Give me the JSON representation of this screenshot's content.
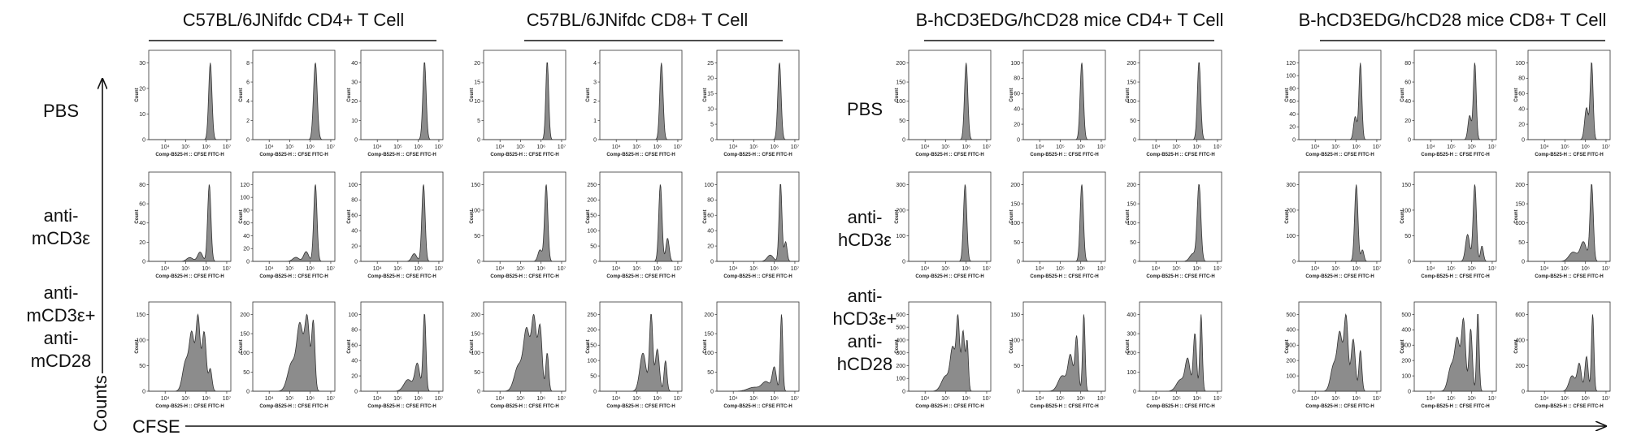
{
  "chart_data": {
    "type": "area",
    "description_type": "histogram-grid",
    "groups": [
      {
        "title": "C57BL/6JNifdc CD4+ T Cell"
      },
      {
        "title": "C57BL/6JNifdc CD8+ T Cell"
      },
      {
        "title": "B-hCD3EDG/hCD28 mice CD4+ T Cell"
      },
      {
        "title": "B-hCD3EDG/hCD28 mice CD8+ T Cell"
      }
    ],
    "row_labels_left": [
      "PBS",
      "anti-mCD3ε",
      "anti-mCD3ε+ anti-mCD28"
    ],
    "row_labels_right": [
      "PBS",
      "anti-hCD3ε",
      "anti-hCD3ε+ anti-hCD28"
    ],
    "y_axis_title": "Counts",
    "x_axis_title": "CFSE",
    "panel_xlabel": "Comp-B525-H :: CFSE FITC-H",
    "panel_ylabel": "Count",
    "x_tick_labels": [
      "10⁴",
      "10⁵",
      "10⁶",
      "10⁷"
    ],
    "x_scale": "log",
    "panels": [
      {
        "group": 0,
        "row": 0,
        "yticks": [
          0,
          10,
          20,
          30
        ],
        "peaks": [
          [
            6.2,
            1.0,
            0.08
          ]
        ]
      },
      {
        "group": 0,
        "row": 0,
        "yticks": [
          0,
          2.0,
          4.0,
          6.0,
          8.0
        ],
        "peaks": [
          [
            6.25,
            1.0,
            0.09
          ]
        ]
      },
      {
        "group": 0,
        "row": 0,
        "yticks": [
          0,
          10,
          20,
          30,
          40
        ],
        "peaks": [
          [
            6.3,
            1.0,
            0.08
          ]
        ]
      },
      {
        "group": 1,
        "row": 0,
        "yticks": [
          0,
          5,
          10,
          15,
          20
        ],
        "peaks": [
          [
            6.3,
            0.8,
            0.07
          ]
        ]
      },
      {
        "group": 1,
        "row": 0,
        "yticks": [
          0,
          1.0,
          2.0,
          3.0,
          4.0
        ],
        "peaks": [
          [
            6.2,
            0.6,
            0.08
          ]
        ]
      },
      {
        "group": 1,
        "row": 0,
        "yticks": [
          0,
          5,
          10,
          15,
          20,
          25
        ],
        "peaks": [
          [
            6.25,
            0.8,
            0.08
          ]
        ]
      },
      {
        "group": 2,
        "row": 0,
        "yticks": [
          0,
          50,
          100,
          150,
          200
        ],
        "peaks": [
          [
            6.0,
            1.0,
            0.08
          ]
        ]
      },
      {
        "group": 2,
        "row": 0,
        "yticks": [
          0,
          20,
          40,
          60,
          80,
          100
        ],
        "peaks": [
          [
            6.05,
            0.6,
            0.08
          ]
        ]
      },
      {
        "group": 2,
        "row": 0,
        "yticks": [
          0,
          50,
          100,
          150,
          200
        ],
        "peaks": [
          [
            6.1,
            0.85,
            0.08
          ]
        ]
      },
      {
        "group": 3,
        "row": 0,
        "yticks": [
          0,
          20,
          40,
          60,
          80,
          100,
          120
        ],
        "peaks": [
          [
            6.2,
            1.0,
            0.07
          ],
          [
            5.95,
            0.3,
            0.08
          ]
        ]
      },
      {
        "group": 3,
        "row": 0,
        "yticks": [
          0,
          20,
          40,
          60,
          80
        ],
        "peaks": [
          [
            6.15,
            0.8,
            0.07
          ],
          [
            5.9,
            0.25,
            0.08
          ]
        ]
      },
      {
        "group": 3,
        "row": 0,
        "yticks": [
          0,
          20,
          40,
          60,
          80,
          100
        ],
        "peaks": [
          [
            6.3,
            0.85,
            0.07
          ],
          [
            6.05,
            0.35,
            0.09
          ]
        ]
      },
      {
        "group": 0,
        "row": 1,
        "yticks": [
          0,
          20,
          40,
          60,
          80
        ],
        "peaks": [
          [
            6.15,
            1.0,
            0.08
          ],
          [
            5.7,
            0.12,
            0.12
          ],
          [
            5.2,
            0.05,
            0.15
          ]
        ]
      },
      {
        "group": 0,
        "row": 1,
        "yticks": [
          0,
          20,
          40,
          60,
          80,
          100,
          120
        ],
        "peaks": [
          [
            6.25,
            0.95,
            0.08
          ],
          [
            5.8,
            0.12,
            0.12
          ],
          [
            5.3,
            0.05,
            0.15
          ]
        ]
      },
      {
        "group": 0,
        "row": 1,
        "yticks": [
          0,
          20,
          40,
          60,
          80,
          100
        ],
        "peaks": [
          [
            6.25,
            1.0,
            0.08
          ],
          [
            5.8,
            0.1,
            0.12
          ]
        ]
      },
      {
        "group": 1,
        "row": 1,
        "yticks": [
          0,
          50,
          100,
          150
        ],
        "peaks": [
          [
            6.25,
            1.0,
            0.08
          ],
          [
            5.95,
            0.15,
            0.1
          ]
        ]
      },
      {
        "group": 1,
        "row": 1,
        "yticks": [
          0,
          50,
          100,
          150,
          200,
          250
        ],
        "peaks": [
          [
            6.15,
            1.0,
            0.08
          ],
          [
            6.5,
            0.3,
            0.08
          ]
        ]
      },
      {
        "group": 1,
        "row": 1,
        "yticks": [
          0,
          20,
          40,
          60,
          80,
          100
        ],
        "peaks": [
          [
            6.3,
            1.0,
            0.07
          ],
          [
            6.55,
            0.25,
            0.07
          ],
          [
            5.8,
            0.08,
            0.15
          ]
        ]
      },
      {
        "group": 2,
        "row": 1,
        "yticks": [
          0,
          100,
          200,
          300
        ],
        "peaks": [
          [
            5.95,
            1.0,
            0.08
          ]
        ]
      },
      {
        "group": 2,
        "row": 1,
        "yticks": [
          0,
          50,
          100,
          150,
          200
        ],
        "peaks": [
          [
            6.05,
            1.0,
            0.08
          ]
        ]
      },
      {
        "group": 2,
        "row": 1,
        "yticks": [
          0,
          50,
          100,
          150,
          200
        ],
        "peaks": [
          [
            6.1,
            1.0,
            0.09
          ],
          [
            5.8,
            0.1,
            0.15
          ]
        ]
      },
      {
        "group": 3,
        "row": 1,
        "yticks": [
          0,
          100,
          200,
          300
        ],
        "peaks": [
          [
            6.0,
            1.0,
            0.08
          ],
          [
            6.3,
            0.15,
            0.07
          ]
        ]
      },
      {
        "group": 3,
        "row": 1,
        "yticks": [
          0,
          50,
          100,
          150
        ],
        "peaks": [
          [
            6.15,
            1.0,
            0.08
          ],
          [
            5.8,
            0.35,
            0.1
          ],
          [
            6.5,
            0.2,
            0.07
          ]
        ]
      },
      {
        "group": 3,
        "row": 1,
        "yticks": [
          0,
          50,
          100,
          150,
          200
        ],
        "peaks": [
          [
            6.3,
            1.0,
            0.08
          ],
          [
            5.9,
            0.25,
            0.15
          ],
          [
            5.4,
            0.12,
            0.2
          ]
        ]
      },
      {
        "group": 0,
        "row": 2,
        "yticks": [
          0,
          50,
          100,
          150
        ],
        "peaks": [
          [
            5.6,
            1.0,
            0.1
          ],
          [
            5.3,
            0.75,
            0.12
          ],
          [
            5.9,
            0.8,
            0.1
          ],
          [
            5.0,
            0.4,
            0.15
          ],
          [
            6.2,
            0.3,
            0.08
          ]
        ]
      },
      {
        "group": 0,
        "row": 2,
        "yticks": [
          0,
          50,
          100,
          150,
          200
        ],
        "peaks": [
          [
            5.5,
            0.8,
            0.15
          ],
          [
            5.85,
            0.9,
            0.12
          ],
          [
            6.15,
            0.85,
            0.08
          ],
          [
            5.1,
            0.35,
            0.2
          ]
        ]
      },
      {
        "group": 0,
        "row": 2,
        "yticks": [
          0,
          20,
          40,
          60,
          80,
          100
        ],
        "peaks": [
          [
            6.3,
            1.0,
            0.07
          ],
          [
            5.95,
            0.35,
            0.12
          ],
          [
            5.5,
            0.15,
            0.2
          ]
        ]
      },
      {
        "group": 1,
        "row": 2,
        "yticks": [
          0,
          50,
          100,
          150,
          200
        ],
        "peaks": [
          [
            5.3,
            0.7,
            0.15
          ],
          [
            5.65,
            0.85,
            0.12
          ],
          [
            5.95,
            0.75,
            0.1
          ],
          [
            6.3,
            0.45,
            0.07
          ],
          [
            4.9,
            0.3,
            0.2
          ]
        ]
      },
      {
        "group": 1,
        "row": 2,
        "yticks": [
          0,
          50,
          100,
          150,
          200,
          250
        ],
        "peaks": [
          [
            5.7,
            1.0,
            0.08
          ],
          [
            5.3,
            0.5,
            0.15
          ],
          [
            6.0,
            0.55,
            0.1
          ],
          [
            6.4,
            0.4,
            0.07
          ]
        ]
      },
      {
        "group": 1,
        "row": 2,
        "yticks": [
          0,
          50,
          100,
          150,
          200
        ],
        "peaks": [
          [
            6.35,
            1.0,
            0.06
          ],
          [
            6.0,
            0.3,
            0.1
          ],
          [
            5.6,
            0.12,
            0.2
          ],
          [
            5.0,
            0.05,
            0.3
          ]
        ]
      },
      {
        "group": 2,
        "row": 2,
        "yticks": [
          0,
          100,
          200,
          300,
          400,
          500,
          600
        ],
        "peaks": [
          [
            5.6,
            0.95,
            0.08
          ],
          [
            5.85,
            0.8,
            0.08
          ],
          [
            5.35,
            0.55,
            0.12
          ],
          [
            6.05,
            0.65,
            0.06
          ],
          [
            5.0,
            0.2,
            0.2
          ]
        ]
      },
      {
        "group": 2,
        "row": 2,
        "yticks": [
          0,
          50,
          100,
          150
        ],
        "peaks": [
          [
            6.15,
            1.0,
            0.06
          ],
          [
            5.8,
            0.7,
            0.08
          ],
          [
            5.5,
            0.45,
            0.12
          ],
          [
            5.1,
            0.2,
            0.2
          ]
        ]
      },
      {
        "group": 2,
        "row": 2,
        "yticks": [
          0,
          100,
          200,
          300,
          400
        ],
        "peaks": [
          [
            6.2,
            1.0,
            0.06
          ],
          [
            5.9,
            0.75,
            0.08
          ],
          [
            5.55,
            0.4,
            0.12
          ],
          [
            5.2,
            0.15,
            0.2
          ]
        ]
      },
      {
        "group": 3,
        "row": 2,
        "yticks": [
          0,
          100,
          200,
          300,
          400,
          500
        ],
        "peaks": [
          [
            5.5,
            1.0,
            0.1
          ],
          [
            5.2,
            0.75,
            0.12
          ],
          [
            5.85,
            0.7,
            0.1
          ],
          [
            6.2,
            0.55,
            0.07
          ],
          [
            4.9,
            0.35,
            0.15
          ]
        ]
      },
      {
        "group": 3,
        "row": 2,
        "yticks": [
          0,
          100,
          200,
          300,
          400,
          500
        ],
        "peaks": [
          [
            5.6,
            0.85,
            0.1
          ],
          [
            5.95,
            0.75,
            0.08
          ],
          [
            5.3,
            0.6,
            0.12
          ],
          [
            6.3,
            0.95,
            0.06
          ],
          [
            5.0,
            0.3,
            0.15
          ]
        ]
      },
      {
        "group": 3,
        "row": 2,
        "yticks": [
          0,
          200,
          400,
          600
        ],
        "peaks": [
          [
            6.35,
            1.0,
            0.06
          ],
          [
            6.05,
            0.45,
            0.08
          ],
          [
            5.7,
            0.35,
            0.1
          ],
          [
            5.35,
            0.2,
            0.15
          ]
        ]
      }
    ]
  }
}
